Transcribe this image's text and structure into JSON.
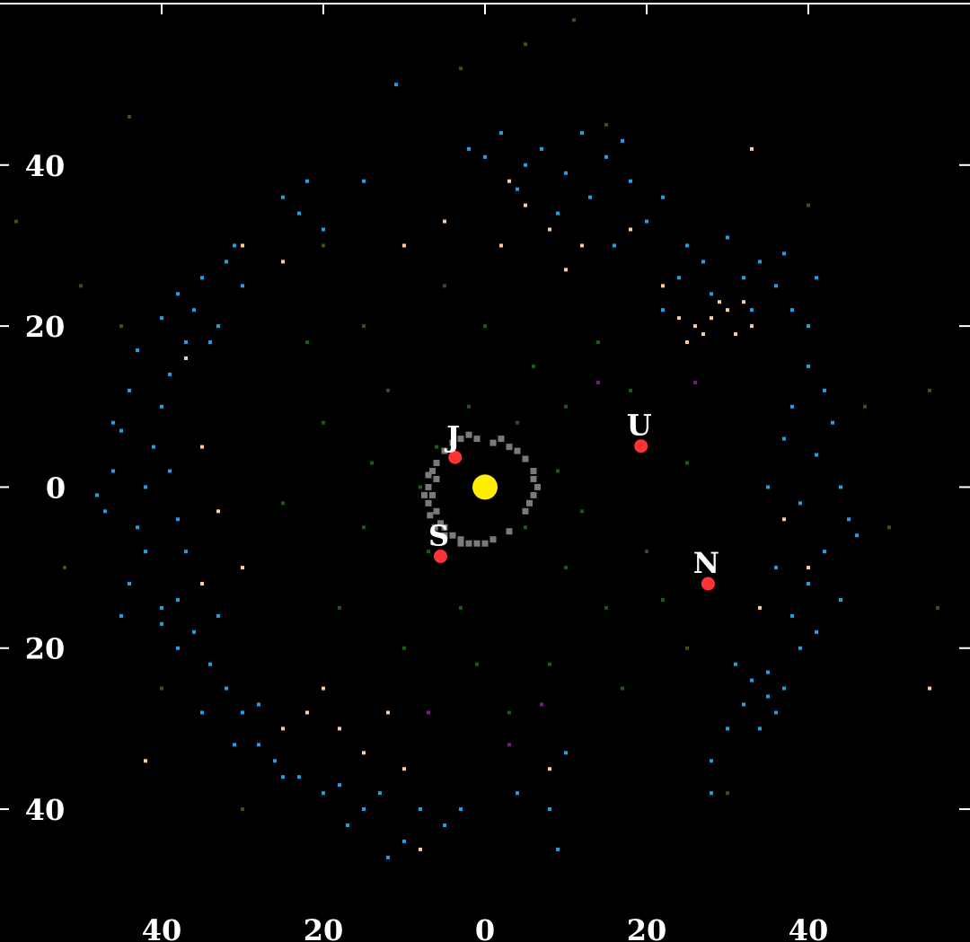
{
  "chart_data": {
    "type": "scatter",
    "title": "",
    "xlabel": "",
    "ylabel": "",
    "xlim": [
      -60,
      60
    ],
    "ylim": [
      -56.5,
      60.5
    ],
    "grid": false,
    "background": "#000000",
    "x_ticks": [
      {
        "value": -40,
        "label": "40"
      },
      {
        "value": -20,
        "label": "20"
      },
      {
        "value": 0,
        "label": "0"
      },
      {
        "value": 20,
        "label": "20"
      },
      {
        "value": 40,
        "label": "40"
      }
    ],
    "y_ticks": [
      {
        "value": 40,
        "label": "40"
      },
      {
        "value": 20,
        "label": "20"
      },
      {
        "value": 0,
        "label": "0"
      },
      {
        "value": -20,
        "label": "20"
      },
      {
        "value": -40,
        "label": "40"
      }
    ],
    "sun": {
      "x": 0,
      "y": 0,
      "color": "#ffee00"
    },
    "planets": [
      {
        "label": "J",
        "x": -3.7,
        "y": 3.7
      },
      {
        "label": "S",
        "x": -5.5,
        "y": -8.6
      },
      {
        "label": "U",
        "x": 19.3,
        "y": 5.1
      },
      {
        "label": "N",
        "x": 27.6,
        "y": -12.0
      }
    ],
    "planet_color": "#ff3333",
    "series": [
      {
        "color": "#7a7a7a",
        "size": 7,
        "points": [
          [
            -6,
            1
          ],
          [
            -6.5,
            -1
          ],
          [
            -6,
            -3
          ],
          [
            -5,
            -5
          ],
          [
            -3,
            -6.5
          ],
          [
            -1,
            -7
          ],
          [
            1,
            -6.5
          ],
          [
            -6,
            3
          ],
          [
            -5,
            4.5
          ],
          [
            -3,
            6
          ],
          [
            -1,
            6
          ],
          [
            1,
            5.5
          ],
          [
            3,
            5
          ],
          [
            5,
            3.5
          ],
          [
            6,
            1
          ],
          [
            6,
            -1
          ],
          [
            5,
            -3
          ],
          [
            -7,
            0
          ],
          [
            -7,
            -2
          ],
          [
            -6.5,
            2
          ],
          [
            -4,
            -6
          ],
          [
            -2,
            -7
          ],
          [
            0,
            -7
          ],
          [
            -5.5,
            -4.5
          ],
          [
            -4,
            5.5
          ],
          [
            2,
            6
          ],
          [
            4,
            4.5
          ],
          [
            6,
            2
          ],
          [
            6.5,
            0
          ],
          [
            -7.5,
            -1
          ],
          [
            -6.8,
            -3.5
          ],
          [
            -5,
            -6
          ],
          [
            -3,
            -7
          ],
          [
            -2,
            6.5
          ],
          [
            -7,
            1.5
          ],
          [
            -6.2,
            -5
          ],
          [
            3,
            -5.5
          ],
          [
            5.5,
            -2
          ]
        ]
      },
      {
        "color": "#1a5c12",
        "size": 4,
        "points": [
          [
            -8,
            0
          ],
          [
            -6,
            5
          ],
          [
            5,
            -5
          ],
          [
            10,
            10
          ],
          [
            -15,
            -5
          ],
          [
            15,
            -15
          ],
          [
            -12,
            12
          ],
          [
            6,
            15
          ],
          [
            -3,
            -15
          ],
          [
            12,
            -3
          ],
          [
            -20,
            8
          ],
          [
            20,
            -8
          ],
          [
            0,
            20
          ],
          [
            -18,
            -15
          ],
          [
            8,
            -22
          ],
          [
            -5,
            25
          ],
          [
            14,
            18
          ],
          [
            -25,
            -2
          ],
          [
            25,
            3
          ],
          [
            3,
            -28
          ],
          [
            -10,
            -20
          ],
          [
            17,
            -25
          ],
          [
            -22,
            18
          ],
          [
            10,
            -10
          ],
          [
            -2,
            10
          ],
          [
            4,
            8
          ],
          [
            -7,
            -8
          ],
          [
            18,
            12
          ],
          [
            -14,
            3
          ],
          [
            9,
            2
          ],
          [
            -1,
            -22
          ],
          [
            22,
            -14
          ]
        ]
      },
      {
        "color": "#4a4a12",
        "size": 4,
        "points": [
          [
            -20,
            30
          ],
          [
            15,
            45
          ],
          [
            -45,
            20
          ],
          [
            47,
            10
          ],
          [
            50,
            -5
          ],
          [
            -52,
            -10
          ],
          [
            40,
            35
          ],
          [
            -30,
            -40
          ],
          [
            30,
            -38
          ],
          [
            -50,
            25
          ],
          [
            55,
            12
          ],
          [
            -15,
            20
          ],
          [
            25,
            -20
          ],
          [
            -40,
            -25
          ],
          [
            5,
            55
          ],
          [
            -58,
            33
          ],
          [
            -44,
            46
          ],
          [
            -3,
            52
          ],
          [
            11,
            58
          ],
          [
            56,
            -15
          ]
        ]
      },
      {
        "color": "#ffcc99",
        "size": 4,
        "points": [
          [
            26,
            20
          ],
          [
            28,
            21
          ],
          [
            30,
            22
          ],
          [
            31,
            19
          ],
          [
            33,
            20
          ],
          [
            25,
            18
          ],
          [
            29,
            23
          ],
          [
            27,
            19
          ],
          [
            32,
            23
          ],
          [
            24,
            21
          ],
          [
            -10,
            30
          ],
          [
            -5,
            33
          ],
          [
            2,
            30
          ],
          [
            5,
            35
          ],
          [
            8,
            32
          ],
          [
            10,
            27
          ],
          [
            3,
            38
          ],
          [
            12,
            30
          ],
          [
            -20,
            -25
          ],
          [
            -22,
            -28
          ],
          [
            -18,
            -30
          ],
          [
            -15,
            -33
          ],
          [
            -12,
            -28
          ],
          [
            -10,
            -35
          ],
          [
            -25,
            -30
          ],
          [
            -35,
            -12
          ],
          [
            -33,
            -3
          ],
          [
            -30,
            -10
          ],
          [
            -37,
            16
          ],
          [
            -30,
            30
          ],
          [
            -25,
            28
          ],
          [
            34,
            -15
          ],
          [
            40,
            -10
          ],
          [
            37,
            -4
          ],
          [
            -8,
            -45
          ],
          [
            8,
            -35
          ],
          [
            22,
            25
          ],
          [
            18,
            32
          ],
          [
            -35,
            5
          ],
          [
            55,
            -25
          ],
          [
            -42,
            -34
          ],
          [
            33,
            42
          ]
        ]
      },
      {
        "color": "#1ea0e6",
        "size": 4,
        "points": [
          [
            -47,
            -3
          ],
          [
            -46,
            2
          ],
          [
            -45,
            7
          ],
          [
            -44,
            12
          ],
          [
            -43,
            17
          ],
          [
            -42,
            -8
          ],
          [
            -44,
            -12
          ],
          [
            -45,
            -16
          ],
          [
            -40,
            -17
          ],
          [
            -41,
            5
          ],
          [
            -39,
            2
          ],
          [
            -38,
            -4
          ],
          [
            -42,
            0
          ],
          [
            -40,
            10
          ],
          [
            -39,
            14
          ],
          [
            -43,
            -5
          ],
          [
            -46,
            8
          ],
          [
            -48,
            -1
          ],
          [
            -37,
            -8
          ],
          [
            -38,
            -14
          ],
          [
            -40,
            21
          ],
          [
            -38,
            24
          ],
          [
            -36,
            22
          ],
          [
            -35,
            26
          ],
          [
            -33,
            20
          ],
          [
            -32,
            28
          ],
          [
            -30,
            25
          ],
          [
            -37,
            18
          ],
          [
            -34,
            18
          ],
          [
            -31,
            30
          ],
          [
            -25,
            36
          ],
          [
            -23,
            34
          ],
          [
            -22,
            38
          ],
          [
            -20,
            32
          ],
          [
            0,
            41
          ],
          [
            2,
            44
          ],
          [
            5,
            40
          ],
          [
            7,
            42
          ],
          [
            10,
            39
          ],
          [
            12,
            44
          ],
          [
            15,
            41
          ],
          [
            17,
            43
          ],
          [
            4,
            37
          ],
          [
            9,
            34
          ],
          [
            13,
            36
          ],
          [
            18,
            38
          ],
          [
            -2,
            42
          ],
          [
            20,
            33
          ],
          [
            16,
            30
          ],
          [
            22,
            36
          ],
          [
            25,
            30
          ],
          [
            27,
            28
          ],
          [
            30,
            31
          ],
          [
            24,
            26
          ],
          [
            32,
            26
          ],
          [
            34,
            28
          ],
          [
            36,
            25
          ],
          [
            38,
            22
          ],
          [
            40,
            20
          ],
          [
            28,
            24
          ],
          [
            33,
            22
          ],
          [
            37,
            29
          ],
          [
            41,
            26
          ],
          [
            22,
            22
          ],
          [
            40,
            15
          ],
          [
            42,
            12
          ],
          [
            38,
            10
          ],
          [
            43,
            8
          ],
          [
            41,
            4
          ],
          [
            44,
            0
          ],
          [
            39,
            -2
          ],
          [
            45,
            -4
          ],
          [
            42,
            -8
          ],
          [
            40,
            -12
          ],
          [
            44,
            -14
          ],
          [
            38,
            -16
          ],
          [
            41,
            -18
          ],
          [
            36,
            -10
          ],
          [
            37,
            6
          ],
          [
            46,
            -6
          ],
          [
            35,
            0
          ],
          [
            39,
            -20
          ],
          [
            33,
            -24
          ],
          [
            35,
            -26
          ],
          [
            36,
            -28
          ],
          [
            34,
            -30
          ],
          [
            32,
            -27
          ],
          [
            37,
            -25
          ],
          [
            31,
            -22
          ],
          [
            35,
            -23
          ],
          [
            30,
            -30
          ],
          [
            28,
            -34
          ],
          [
            -5,
            -42
          ],
          [
            -8,
            -40
          ],
          [
            -10,
            -44
          ],
          [
            -13,
            -38
          ],
          [
            -15,
            -40
          ],
          [
            -18,
            -37
          ],
          [
            -20,
            -38
          ],
          [
            -23,
            -36
          ],
          [
            -26,
            -34
          ],
          [
            -28,
            -32
          ],
          [
            -3,
            -40
          ],
          [
            8,
            -40
          ],
          [
            9,
            -45
          ],
          [
            -12,
            -46
          ],
          [
            -17,
            -42
          ],
          [
            -25,
            -36
          ],
          [
            10,
            -33
          ],
          [
            4,
            -38
          ],
          [
            -30,
            -28
          ],
          [
            -32,
            -25
          ],
          [
            -34,
            -22
          ],
          [
            -36,
            -18
          ],
          [
            -38,
            -20
          ],
          [
            -35,
            -28
          ],
          [
            -31,
            -32
          ],
          [
            -28,
            -27
          ],
          [
            -40,
            -15
          ],
          [
            -33,
            -16
          ],
          [
            -11,
            50
          ],
          [
            -15,
            38
          ],
          [
            28,
            -38
          ]
        ]
      },
      {
        "color": "#7a1a8a",
        "size": 4,
        "points": [
          [
            -7,
            -28
          ],
          [
            7,
            -27
          ],
          [
            26,
            13
          ],
          [
            3,
            -32
          ],
          [
            14,
            13
          ]
        ]
      }
    ]
  }
}
